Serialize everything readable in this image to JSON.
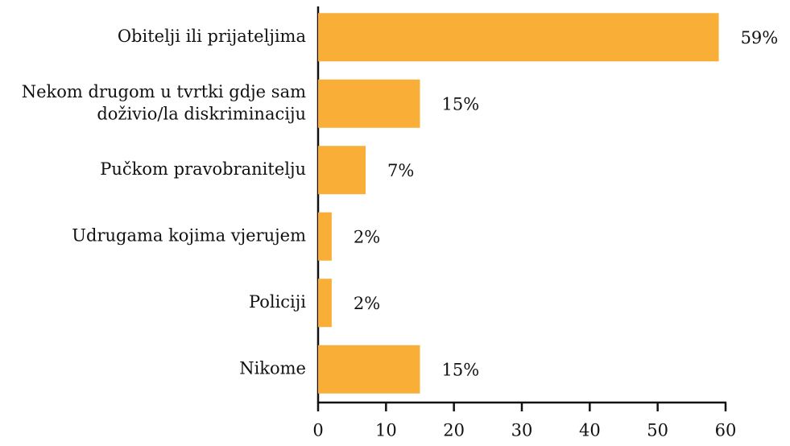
{
  "chart_data": {
    "type": "barh",
    "categories": [
      "Obitelji ili prijateljima",
      "Nekom drugom u tvrtki gdje sam\ndoživio/la diskriminaciju",
      "Pučkom pravobranitelju",
      "Udrugama kojima vjerujem",
      "Policiji",
      "Nikome"
    ],
    "values": [
      59,
      15,
      7,
      2,
      2,
      15
    ],
    "value_labels": [
      "59%",
      "15%",
      "7%",
      "2%",
      "2%",
      "15%"
    ],
    "color": "#f9ae38",
    "xlim": [
      0,
      60
    ],
    "xticks": [
      0,
      10,
      20,
      30,
      40,
      50,
      60
    ]
  }
}
